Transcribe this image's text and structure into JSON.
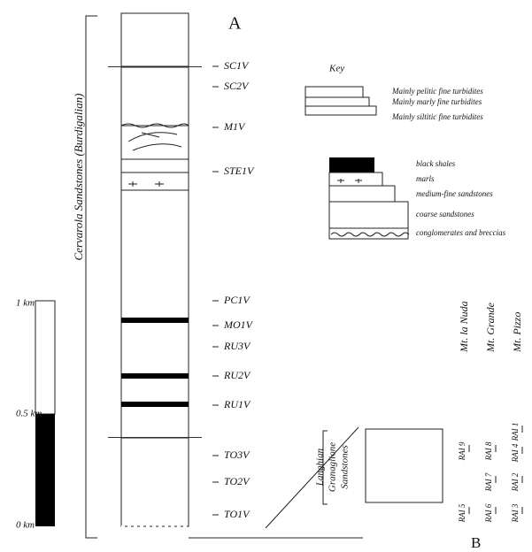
{
  "panel_a": {
    "label": "A",
    "formation": "Cervarola Sandstones (Burdigalian)",
    "samples": [
      "SC1V",
      "SC2V",
      "M1V",
      "STE1V",
      "PC1V",
      "MO1V",
      "RU3V",
      "RU2V",
      "RU1V",
      "TO3V",
      "TO2V",
      "TO1V"
    ]
  },
  "scale": [
    "1 km",
    "0.5 km",
    "0 km"
  ],
  "key": {
    "title": "Key",
    "turbidites": [
      "Mainly pelitic fine turbidites",
      "Mainly marly fine turbidites",
      "Mainly siltitic fine turbidites"
    ],
    "lithologies": [
      "black shales",
      "marls",
      "medium-fine sandstones",
      "coarse sandstones",
      "conglomerates and breccias"
    ]
  },
  "panel_b": {
    "label": "B",
    "localities": [
      "Mt. la Nuda",
      "Mt. Grande",
      "Mt. Pizzo"
    ],
    "stage": "Langhian",
    "formation": [
      "Granaglione",
      "Sandstones"
    ],
    "samples": [
      "RAI 9",
      "RAI 5",
      "RAI 8",
      "RAI 7",
      "RAI 6",
      "RAI 1",
      "RAI 4",
      "RAI 2",
      "RAI 3"
    ]
  }
}
